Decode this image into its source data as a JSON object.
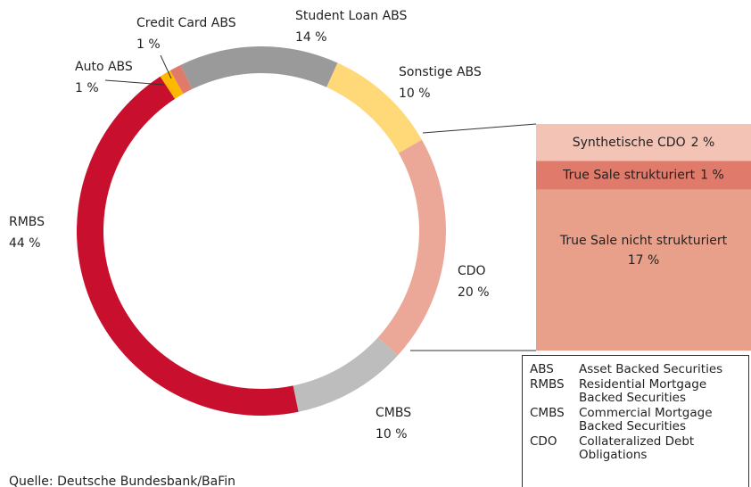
{
  "chart_data": {
    "type": "donut",
    "categories": [
      "Student Loan ABS",
      "Sonstige ABS",
      "CDO",
      "CMBS",
      "RMBS",
      "Auto ABS",
      "Credit Card ABS"
    ],
    "values": [
      14,
      10,
      20,
      10,
      44,
      1,
      1
    ],
    "value_labels": [
      "14 %",
      "10 %",
      "20 %",
      "10 %",
      "44 %",
      "1 %",
      "1 %"
    ],
    "colors": [
      "#9a9a9a",
      "#ffd878",
      "#eba899",
      "#bdbdbd",
      "#c8102e",
      "#ffb800",
      "#e07a6a"
    ],
    "breakdown": {
      "categories": [
        "Synthetische CDO",
        "True Sale strukturiert",
        "True Sale nicht strukturiert"
      ],
      "values": [
        2,
        1,
        17
      ],
      "value_labels": [
        "2 %",
        "1 %",
        "17 %"
      ],
      "colors": [
        "#f3c4b6",
        "#e07a6a",
        "#e9a08a"
      ]
    },
    "glossary": [
      {
        "abbr": "ABS",
        "text": "Asset Backed Securities"
      },
      {
        "abbr": "RMBS",
        "text": "Residential Mortgage Backed Securities"
      },
      {
        "abbr": "CMBS",
        "text": "Commercial Mortgage Backed Securities"
      },
      {
        "abbr": "CDO",
        "text": "Collateralized Debt Obligations"
      }
    ],
    "source": "Quelle: Deutsche Bundesbank/BaFin"
  }
}
